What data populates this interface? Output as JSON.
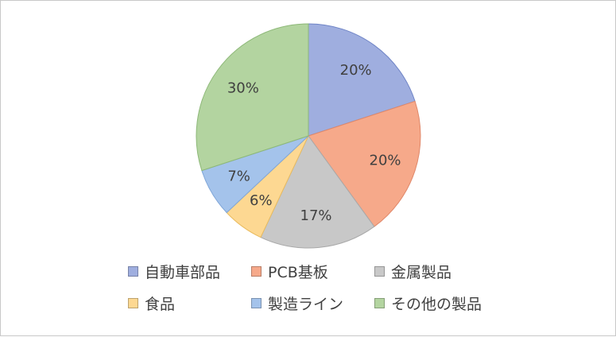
{
  "chart_data": {
    "type": "pie",
    "categories": [
      "自動車部品",
      "PCB基板",
      "金属製品",
      "食品",
      "製造ライン",
      "その他の製品"
    ],
    "values": [
      20,
      20,
      17,
      6,
      7,
      30
    ],
    "labels": [
      "20%",
      "20%",
      "17%",
      "6%",
      "7%",
      "30%"
    ],
    "colors": [
      "#9FAEDF",
      "#F6A98A",
      "#C8C8C8",
      "#FDD892",
      "#A4C3EB",
      "#B3D4A0"
    ],
    "stroke_colors": [
      "#6F84C6",
      "#E0886A",
      "#A9A9A9",
      "#E9BB5E",
      "#7FA6D8",
      "#8DB878"
    ],
    "legend_position": "bottom",
    "title": ""
  }
}
